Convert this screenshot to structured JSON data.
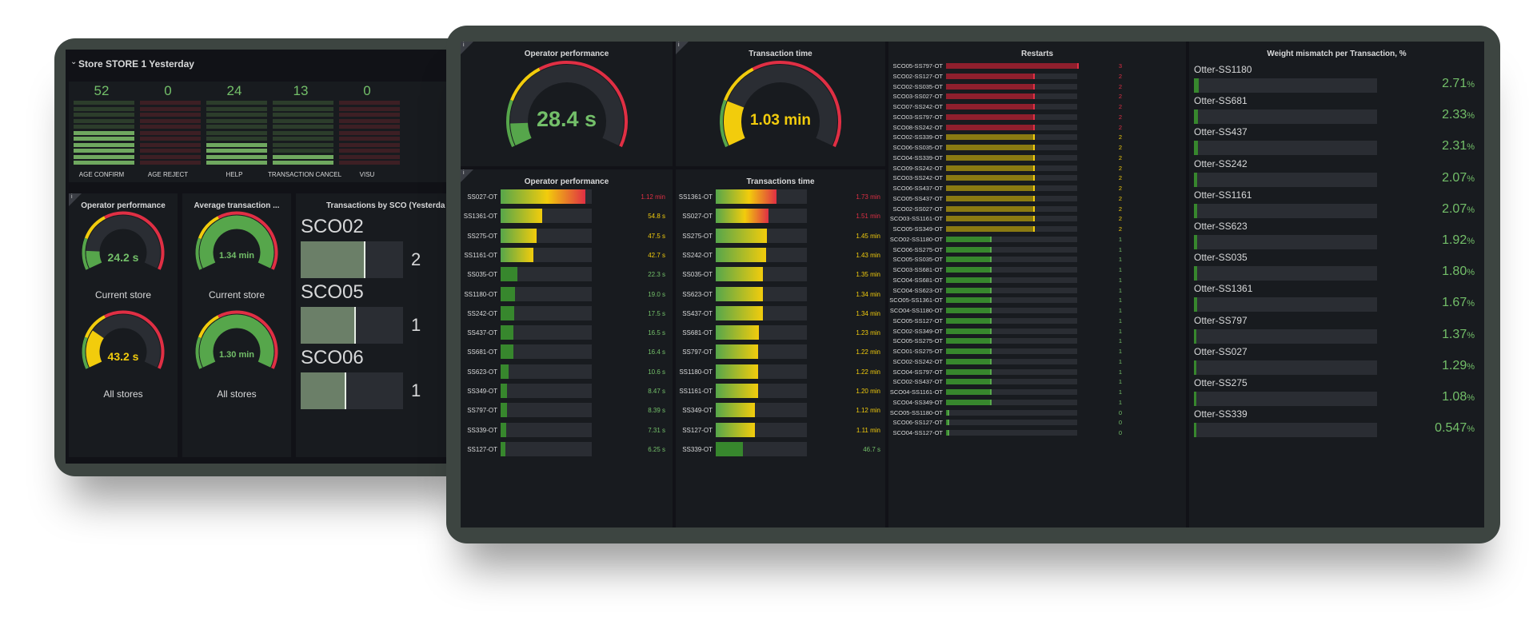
{
  "back_dashboard": {
    "row_title": "Store STORE 1 Yesterday",
    "counters": [
      {
        "label": "AGE CONFIRM",
        "count": "52",
        "level": 0.55,
        "tone": "green"
      },
      {
        "label": "AGE REJECT",
        "count": "0",
        "level": 0.0,
        "tone": "red"
      },
      {
        "label": "HELP",
        "count": "24",
        "level": 0.35,
        "tone": "green"
      },
      {
        "label": "TRANSACTION CANCEL",
        "count": "13",
        "level": 0.2,
        "tone": "green"
      },
      {
        "label": "VISU",
        "count": "0",
        "level": 0.0,
        "tone": "red"
      }
    ],
    "operator_panel": {
      "title": "Operator performance",
      "gauges": [
        {
          "value_text": "24.2 s",
          "fraction": 0.12,
          "color": "#56a64b",
          "caption": "Current store"
        },
        {
          "value_text": "43.2 s",
          "fraction": 0.26,
          "color": "#f2cc0c",
          "caption": "All stores"
        }
      ]
    },
    "avg_panel": {
      "title": "Average transaction ...",
      "gauges": [
        {
          "value_text": "1.34 min",
          "fraction": 1.0,
          "color": "#56a64b",
          "caption": "Current store"
        },
        {
          "value_text": "1.30 min",
          "fraction": 1.0,
          "color": "#56a64b",
          "caption": "All stores"
        }
      ]
    },
    "sco_panel": {
      "title": "Transactions by SCO (Yesterda",
      "items": [
        {
          "name": "SCO02",
          "fraction": 0.62,
          "num": "2"
        },
        {
          "name": "SCO05",
          "fraction": 0.52,
          "num": "1"
        },
        {
          "name": "SCO06",
          "fraction": 0.43,
          "num": "1"
        }
      ]
    }
  },
  "front_dashboard": {
    "gauge_operator": {
      "title": "Operator performance",
      "value_text": "28.4 s",
      "fraction": 0.1,
      "color": "#56a64b"
    },
    "gauge_transaction": {
      "title": "Transaction time",
      "value_text": "1.03 min",
      "fraction": 0.2,
      "color": "#f2cc0c"
    },
    "operator_bars": {
      "title": "Operator performance",
      "max": 120,
      "rows": [
        {
          "label": "SS027-OT",
          "value": 112,
          "text": "1.12 min",
          "color": "#e02f44"
        },
        {
          "label": "SS1361-OT",
          "value": 54.8,
          "text": "54.8 s",
          "color": "#f2cc0c"
        },
        {
          "label": "SS275-OT",
          "value": 47.5,
          "text": "47.5 s",
          "color": "#f2cc0c"
        },
        {
          "label": "SS1161-OT",
          "value": 42.7,
          "text": "42.7 s",
          "color": "#f2cc0c"
        },
        {
          "label": "SS035-OT",
          "value": 22.3,
          "text": "22.3 s",
          "color": "#56a64b"
        },
        {
          "label": "SS1180-OT",
          "value": 19.0,
          "text": "19.0 s",
          "color": "#56a64b"
        },
        {
          "label": "SS242-OT",
          "value": 17.5,
          "text": "17.5 s",
          "color": "#56a64b"
        },
        {
          "label": "SS437-OT",
          "value": 16.5,
          "text": "16.5 s",
          "color": "#56a64b"
        },
        {
          "label": "SS681-OT",
          "value": 16.4,
          "text": "16.4 s",
          "color": "#56a64b"
        },
        {
          "label": "SS623-OT",
          "value": 10.6,
          "text": "10.6 s",
          "color": "#56a64b"
        },
        {
          "label": "SS349-OT",
          "value": 8.47,
          "text": "8.47 s",
          "color": "#56a64b"
        },
        {
          "label": "SS797-OT",
          "value": 8.39,
          "text": "8.39 s",
          "color": "#56a64b"
        },
        {
          "label": "SS339-OT",
          "value": 7.31,
          "text": "7.31 s",
          "color": "#56a64b"
        },
        {
          "label": "SS127-OT",
          "value": 6.25,
          "text": "6.25 s",
          "color": "#56a64b"
        }
      ]
    },
    "transaction_bars": {
      "title": "Transactions time",
      "max": 2.6,
      "rows": [
        {
          "label": "SS1361-OT",
          "value": 1.73,
          "text": "1.73 min",
          "color": "#e02f44"
        },
        {
          "label": "SS027-OT",
          "value": 1.51,
          "text": "1.51 min",
          "color": "#e02f44"
        },
        {
          "label": "SS275-OT",
          "value": 1.45,
          "text": "1.45 min",
          "color": "#f2cc0c"
        },
        {
          "label": "SS242-OT",
          "value": 1.43,
          "text": "1.43 min",
          "color": "#f2cc0c"
        },
        {
          "label": "SS035-OT",
          "value": 1.35,
          "text": "1.35 min",
          "color": "#f2cc0c"
        },
        {
          "label": "SS623-OT",
          "value": 1.34,
          "text": "1.34 min",
          "color": "#f2cc0c"
        },
        {
          "label": "SS437-OT",
          "value": 1.34,
          "text": "1.34 min",
          "color": "#f2cc0c"
        },
        {
          "label": "SS681-OT",
          "value": 1.23,
          "text": "1.23 min",
          "color": "#f2cc0c"
        },
        {
          "label": "SS797-OT",
          "value": 1.22,
          "text": "1.22 min",
          "color": "#f2cc0c"
        },
        {
          "label": "SS1180-OT",
          "value": 1.22,
          "text": "1.22 min",
          "color": "#f2cc0c"
        },
        {
          "label": "SS1161-OT",
          "value": 1.2,
          "text": "1.20 min",
          "color": "#f2cc0c"
        },
        {
          "label": "SS349-OT",
          "value": 1.12,
          "text": "1.12 min",
          "color": "#f2cc0c"
        },
        {
          "label": "SS127-OT",
          "value": 1.11,
          "text": "1.11 min",
          "color": "#f2cc0c"
        },
        {
          "label": "SS339-OT",
          "value": 0.78,
          "text": "46.7 s",
          "color": "#56a64b"
        }
      ]
    },
    "restarts": {
      "title": "Restarts",
      "max": 3,
      "rows": [
        {
          "label": "SCO05-SS797-OT",
          "value": 3
        },
        {
          "label": "SCO02-SS127-OT",
          "value": 2
        },
        {
          "label": "SCO02-SS035-OT",
          "value": 2
        },
        {
          "label": "SCO03-SS027-OT",
          "value": 2
        },
        {
          "label": "SCO07-SS242-OT",
          "value": 2
        },
        {
          "label": "SCO03-SS797-OT",
          "value": 2
        },
        {
          "label": "SCO08-SS242-OT",
          "value": 2
        },
        {
          "label": "SCO02-SS339-OT",
          "value": 2
        },
        {
          "label": "SCO06-SS035-OT",
          "value": 2
        },
        {
          "label": "SCO04-SS339-OT",
          "value": 2
        },
        {
          "label": "SCO09-SS242-OT",
          "value": 2
        },
        {
          "label": "SCO03-SS242-OT",
          "value": 2
        },
        {
          "label": "SCO06-SS437-OT",
          "value": 2
        },
        {
          "label": "SCO05-SS437-OT",
          "value": 2
        },
        {
          "label": "SCO02-SS027-OT",
          "value": 2
        },
        {
          "label": "SCO03-SS1161-OT",
          "value": 2
        },
        {
          "label": "SCO05-SS349-OT",
          "value": 2
        },
        {
          "label": "SCO02-SS1180-OT",
          "value": 1
        },
        {
          "label": "SCO06-SS275-OT",
          "value": 1
        },
        {
          "label": "SCO05-SS035-OT",
          "value": 1
        },
        {
          "label": "SCO03-SS681-OT",
          "value": 1
        },
        {
          "label": "SCO04-SS681-OT",
          "value": 1
        },
        {
          "label": "SCO04-SS623-OT",
          "value": 1
        },
        {
          "label": "SCO05-SS1361-OT",
          "value": 1
        },
        {
          "label": "SCO04-SS1180-OT",
          "value": 1
        },
        {
          "label": "SCO05-SS127-OT",
          "value": 1
        },
        {
          "label": "SCO02-SS349-OT",
          "value": 1
        },
        {
          "label": "SCO05-SS275-OT",
          "value": 1
        },
        {
          "label": "SCO01-SS275-OT",
          "value": 1
        },
        {
          "label": "SCO02-SS242-OT",
          "value": 1
        },
        {
          "label": "SCO04-SS797-OT",
          "value": 1
        },
        {
          "label": "SCO02-SS437-OT",
          "value": 1
        },
        {
          "label": "SCO04-SS1161-OT",
          "value": 1
        },
        {
          "label": "SCO04-SS349-OT",
          "value": 1
        },
        {
          "label": "SCO05-SS1180-OT",
          "value": 0
        },
        {
          "label": "SCO06-SS127-OT",
          "value": 0
        },
        {
          "label": "SCO04-SS127-OT",
          "value": 0
        }
      ]
    },
    "weight_mismatch": {
      "title": "Weight mismatch per Transaction, %",
      "rows": [
        {
          "name": "Otter-SS1180",
          "value": "2.71",
          "unit": "%"
        },
        {
          "name": "Otter-SS681",
          "value": "2.33",
          "unit": "%"
        },
        {
          "name": "Otter-SS437",
          "value": "2.31",
          "unit": "%"
        },
        {
          "name": "Otter-SS242",
          "value": "2.07",
          "unit": "%"
        },
        {
          "name": "Otter-SS1161",
          "value": "2.07",
          "unit": "%"
        },
        {
          "name": "Otter-SS623",
          "value": "1.92",
          "unit": "%"
        },
        {
          "name": "Otter-SS035",
          "value": "1.80",
          "unit": "%"
        },
        {
          "name": "Otter-SS1361",
          "value": "1.67",
          "unit": "%"
        },
        {
          "name": "Otter-SS797",
          "value": "1.37",
          "unit": "%"
        },
        {
          "name": "Otter-SS027",
          "value": "1.29",
          "unit": "%"
        },
        {
          "name": "Otter-SS275",
          "value": "1.08",
          "unit": "%"
        },
        {
          "name": "Otter-SS339",
          "value": "0.547",
          "unit": "%"
        }
      ]
    }
  }
}
